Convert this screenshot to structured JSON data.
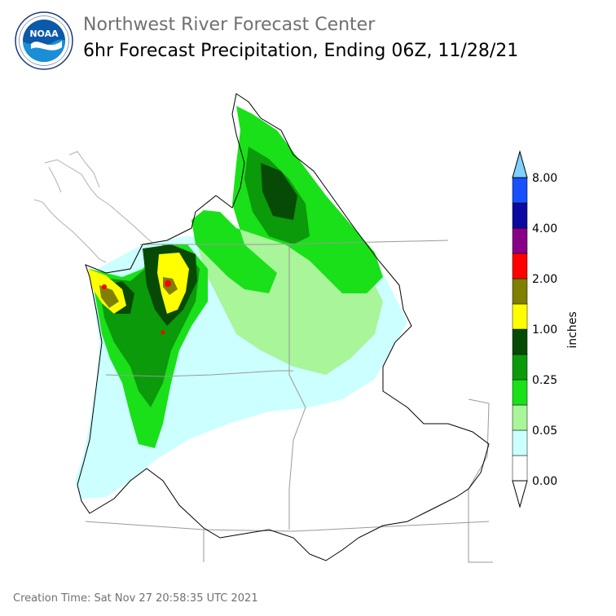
{
  "header": {
    "org_title": "Northwest River Forecast Center",
    "product_title": "6hr Forecast Precipitation, Ending 06Z, 11/28/21",
    "logo_text": "NOAA",
    "logo_ring_text": "NATIONAL OCEANIC AND ATMOSPHERIC ADMINISTRATION · U.S. DEPARTMENT OF COMMERCE"
  },
  "legend": {
    "unit_label": "inches",
    "tick_labels": [
      "8.00",
      "4.00",
      "2.00",
      "1.00",
      "0.25",
      "0.05",
      "0.00"
    ],
    "bins": [
      {
        "color": "#ffffff"
      },
      {
        "color": "#ccffff"
      },
      {
        "color": "#a8f59a"
      },
      {
        "color": "#19e019"
      },
      {
        "color": "#0a9a0a"
      },
      {
        "color": "#064a06"
      },
      {
        "color": "#ffff00"
      },
      {
        "color": "#7f7f00"
      },
      {
        "color": "#ff0000"
      },
      {
        "color": "#880088"
      },
      {
        "color": "#0a0aa0"
      },
      {
        "color": "#1650ff"
      }
    ],
    "over_color": "#7fd0ff",
    "under_color": "#ffffff"
  },
  "footer": {
    "creation_time": "Creation Time: Sat Nov 27 20:58:35 UTC 2021"
  }
}
